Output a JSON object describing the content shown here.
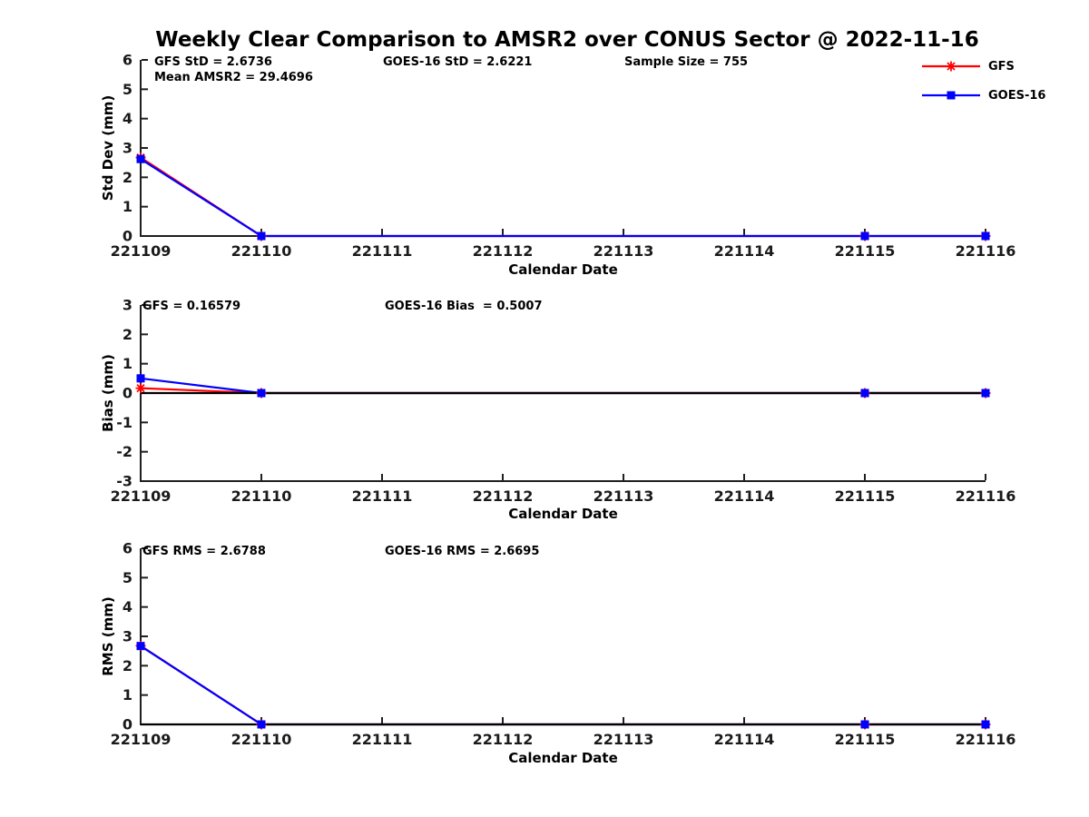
{
  "title": "Weekly Clear Comparison to AMSR2 over CONUS Sector @ 2022-11-16",
  "colors": {
    "gfs": "#ff0000",
    "goes16": "#0000ff",
    "axis": "#1f1f1f",
    "zero_line": "#000000",
    "tick_text": "#1a1a1a"
  },
  "legend": {
    "entries": [
      {
        "label": "GFS",
        "color": "#ff0000",
        "marker": "asterisk"
      },
      {
        "label": "GOES-16",
        "color": "#0000ff",
        "marker": "square"
      }
    ]
  },
  "chart_data": [
    {
      "type": "line",
      "name": "std-dev",
      "ylabel": "Std Dev (mm)",
      "xlabel": "Calendar Date",
      "ylim": [
        0,
        6
      ],
      "yticks": [
        0,
        1,
        2,
        3,
        4,
        5,
        6
      ],
      "xlim": [
        221109,
        221116
      ],
      "xticks": [
        221109,
        221110,
        221111,
        221112,
        221113,
        221114,
        221115,
        221116
      ],
      "grid": false,
      "legend_position": "outside-northeast",
      "annotations": [
        "GFS StD = 2.6736",
        "Mean AMSR2 = 29.4696",
        "GOES-16 StD = 2.6221",
        "Sample Size = 755"
      ],
      "zero_line": false,
      "series": [
        {
          "name": "GFS",
          "color": "#ff0000",
          "marker": "asterisk",
          "x": [
            221109,
            221110,
            221115,
            221116
          ],
          "y": [
            2.6736,
            0,
            0,
            0
          ]
        },
        {
          "name": "GOES-16",
          "color": "#0000ff",
          "marker": "square",
          "x": [
            221109,
            221110,
            221115,
            221116
          ],
          "y": [
            2.6221,
            0,
            0,
            0
          ]
        }
      ]
    },
    {
      "type": "line",
      "name": "bias",
      "ylabel": "Bias (mm)",
      "xlabel": "Calendar Date",
      "ylim": [
        -3,
        3
      ],
      "yticks": [
        -3,
        -2,
        -1,
        0,
        1,
        2,
        3
      ],
      "xlim": [
        221109,
        221116
      ],
      "xticks": [
        221109,
        221110,
        221111,
        221112,
        221113,
        221114,
        221115,
        221116
      ],
      "grid": false,
      "annotations": [
        "GFS = 0.16579",
        "GOES-16 Bias  = 0.5007"
      ],
      "zero_line": true,
      "series": [
        {
          "name": "GFS",
          "color": "#ff0000",
          "marker": "asterisk",
          "x": [
            221109,
            221110,
            221115,
            221116
          ],
          "y": [
            0.16579,
            0,
            0,
            0
          ]
        },
        {
          "name": "GOES-16",
          "color": "#0000ff",
          "marker": "square",
          "x": [
            221109,
            221110,
            221115,
            221116
          ],
          "y": [
            0.5007,
            0,
            0,
            0
          ]
        }
      ]
    },
    {
      "type": "line",
      "name": "rms",
      "ylabel": "RMS (mm)",
      "xlabel": "Calendar Date",
      "ylim": [
        0,
        6
      ],
      "yticks": [
        0,
        1,
        2,
        3,
        4,
        5,
        6
      ],
      "xlim": [
        221109,
        221116
      ],
      "xticks": [
        221109,
        221110,
        221111,
        221112,
        221113,
        221114,
        221115,
        221116
      ],
      "grid": false,
      "annotations": [
        "GFS RMS = 2.6788",
        "GOES-16 RMS = 2.6695"
      ],
      "zero_line": true,
      "series": [
        {
          "name": "GFS",
          "color": "#ff0000",
          "marker": "asterisk",
          "x": [
            221109,
            221110,
            221115,
            221116
          ],
          "y": [
            2.6788,
            0,
            0,
            0
          ]
        },
        {
          "name": "GOES-16",
          "color": "#0000ff",
          "marker": "square",
          "x": [
            221109,
            221110,
            221115,
            221116
          ],
          "y": [
            2.6695,
            0,
            0,
            0
          ]
        }
      ]
    }
  ]
}
